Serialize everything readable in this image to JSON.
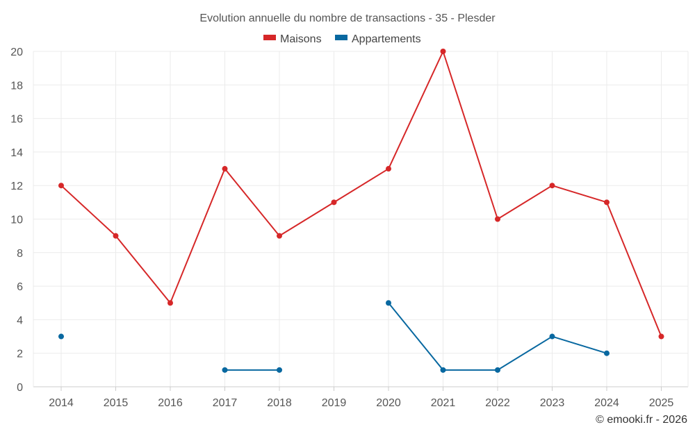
{
  "chart_data": {
    "type": "line",
    "title": "Evolution annuelle du nombre de transactions - 35 - Plesder",
    "categories": [
      "2014",
      "2015",
      "2016",
      "2017",
      "2018",
      "2019",
      "2020",
      "2021",
      "2022",
      "2023",
      "2024",
      "2025"
    ],
    "ylim": [
      0,
      20
    ],
    "yticks": [
      0,
      2,
      4,
      6,
      8,
      10,
      12,
      14,
      16,
      18,
      20
    ],
    "grid": true,
    "legend_position": "top-center",
    "series": [
      {
        "name": "Maisons",
        "color": "#d62728",
        "values": [
          12,
          9,
          5,
          13,
          9,
          11,
          13,
          20,
          10,
          12,
          11,
          3
        ]
      },
      {
        "name": "Appartements",
        "color": "#0868a0",
        "values": [
          3,
          null,
          null,
          1,
          1,
          null,
          5,
          1,
          1,
          3,
          2,
          null
        ]
      }
    ],
    "credit": "© emooki.fr - 2026"
  }
}
